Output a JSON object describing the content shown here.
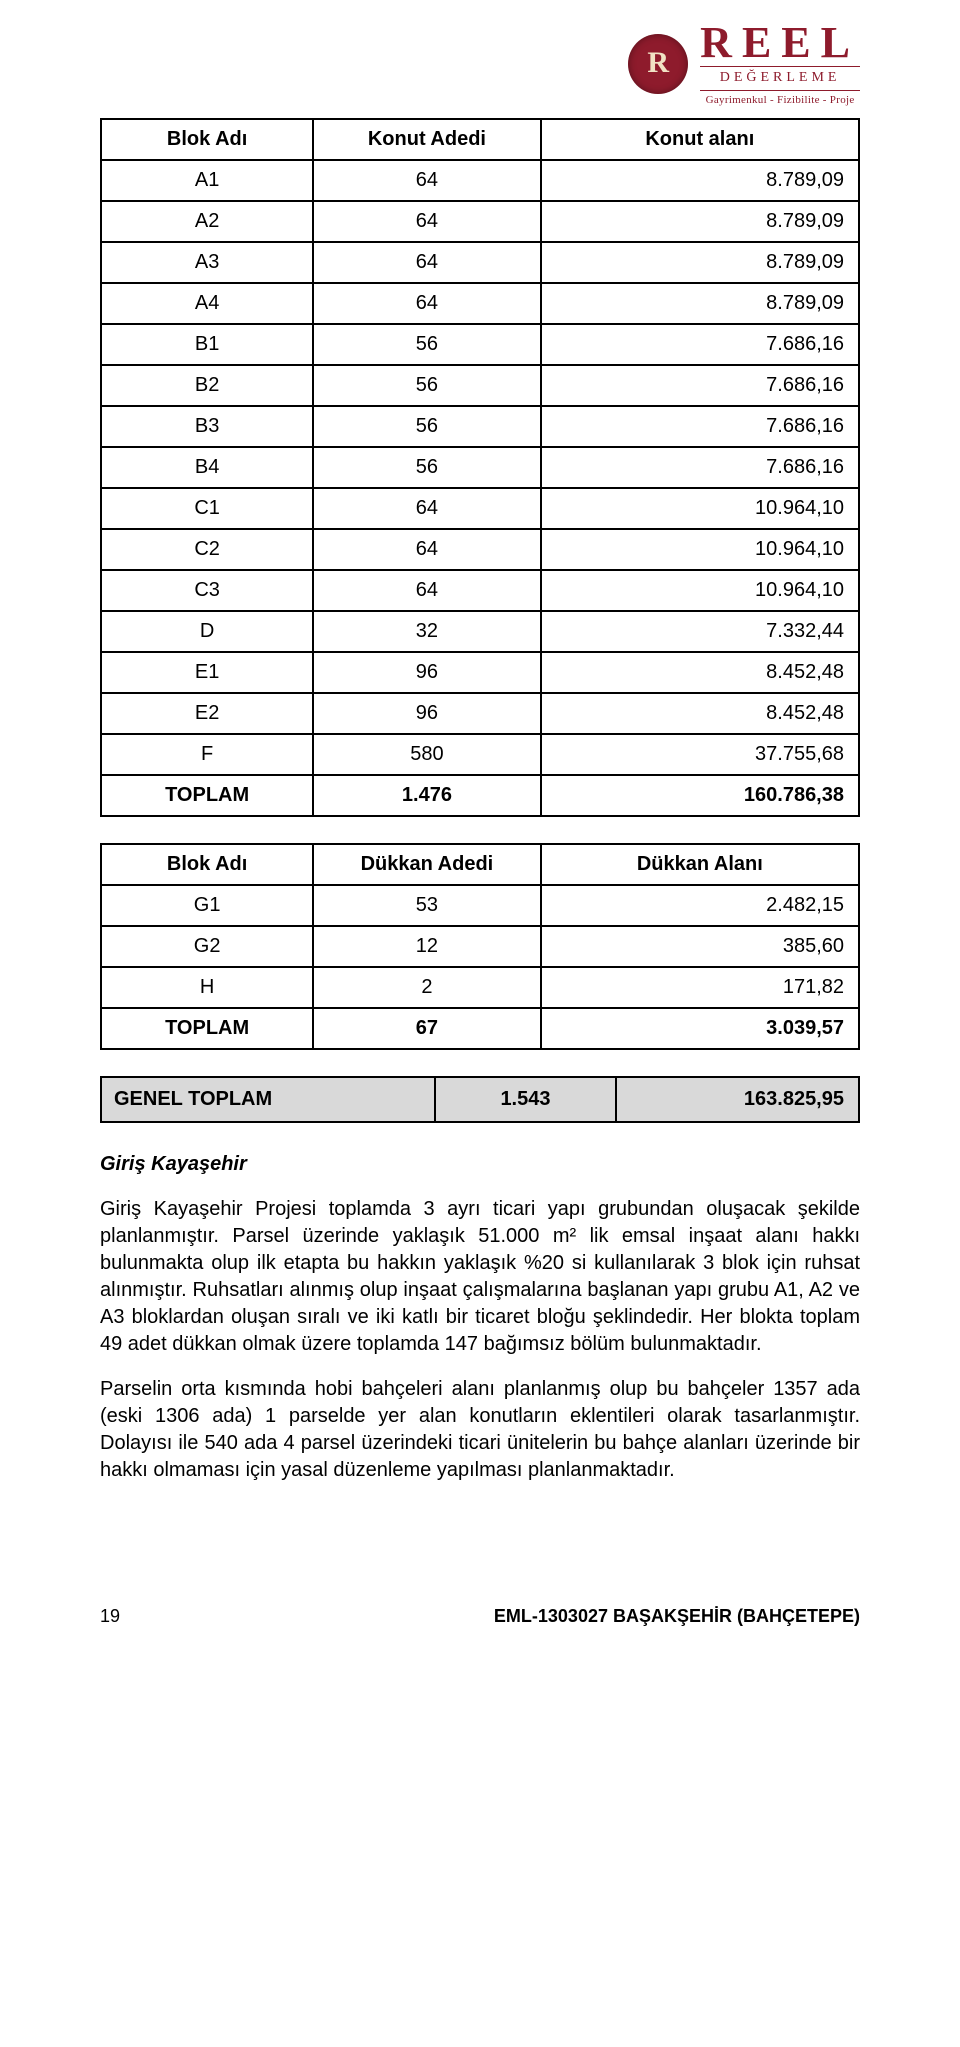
{
  "logo": {
    "brand": "REEL",
    "sub1": "DEĞERLEME",
    "sub2": "Gayrimenkul - Fizibilite - Proje"
  },
  "table1": {
    "headers": [
      "Blok Adı",
      "Konut Adedi",
      "Konut alanı"
    ],
    "rows": [
      [
        "A1",
        "64",
        "8.789,09"
      ],
      [
        "A2",
        "64",
        "8.789,09"
      ],
      [
        "A3",
        "64",
        "8.789,09"
      ],
      [
        "A4",
        "64",
        "8.789,09"
      ],
      [
        "B1",
        "56",
        "7.686,16"
      ],
      [
        "B2",
        "56",
        "7.686,16"
      ],
      [
        "B3",
        "56",
        "7.686,16"
      ],
      [
        "B4",
        "56",
        "7.686,16"
      ],
      [
        "C1",
        "64",
        "10.964,10"
      ],
      [
        "C2",
        "64",
        "10.964,10"
      ],
      [
        "C3",
        "64",
        "10.964,10"
      ],
      [
        "D",
        "32",
        "7.332,44"
      ],
      [
        "E1",
        "96",
        "8.452,48"
      ],
      [
        "E2",
        "96",
        "8.452,48"
      ],
      [
        "F",
        "580",
        "37.755,68"
      ]
    ],
    "total": [
      "TOPLAM",
      "1.476",
      "160.786,38"
    ]
  },
  "table2": {
    "headers": [
      "Blok Adı",
      "Dükkan Adedi",
      "Dükkan Alanı"
    ],
    "rows": [
      [
        "G1",
        "53",
        "2.482,15"
      ],
      [
        "G2",
        "12",
        "385,60"
      ],
      [
        "H",
        "2",
        "171,82"
      ]
    ],
    "total": [
      "TOPLAM",
      "67",
      "3.039,57"
    ]
  },
  "general": {
    "label": "GENEL TOPLAM",
    "count": "1.543",
    "area": "163.825,95"
  },
  "section_title": "Giriş Kayaşehir",
  "para1": "Giriş Kayaşehir Projesi toplamda 3 ayrı ticari yapı grubundan oluşacak şekilde planlanmıştır. Parsel üzerinde yaklaşık 51.000 m² lik emsal inşaat alanı hakkı bulunmakta olup ilk etapta bu hakkın yaklaşık %20 si kullanılarak 3 blok için ruhsat alınmıştır. Ruhsatları alınmış olup inşaat çalışmalarına başlanan yapı grubu A1, A2 ve A3 bloklardan oluşan sıralı ve iki katlı bir ticaret bloğu şeklindedir. Her blokta toplam 49 adet dükkan olmak üzere toplamda 147 bağımsız bölüm bulunmaktadır.",
  "para2": "Parselin orta kısmında hobi bahçeleri alanı planlanmış olup bu bahçeler 1357 ada (eski 1306 ada) 1 parselde yer alan konutların eklentileri olarak tasarlanmıştır. Dolayısı ile 540 ada 4 parsel üzerindeki ticari ünitelerin bu bahçe alanları üzerinde bir hakkı olmaması için yasal düzenleme yapılması planlanmaktadır.",
  "footer": {
    "page": "19",
    "ref": "EML-1303027 BAŞAKŞEHİR (BAHÇETEPE)"
  }
}
